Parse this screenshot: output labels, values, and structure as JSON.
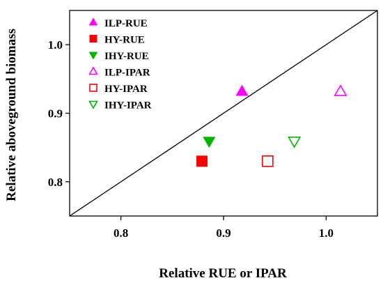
{
  "chart_data": {
    "type": "scatter",
    "title": "",
    "xlabel": "Relative RUE or IPAR",
    "ylabel": "Relative aboveground biomass",
    "xlim": [
      0.75,
      1.05
    ],
    "ylim": [
      0.75,
      1.05
    ],
    "xticks": [
      0.8,
      0.9,
      1.0
    ],
    "yticks": [
      0.8,
      0.9,
      1.0
    ],
    "xtick_labels": [
      "0.8",
      "0.9",
      "1.0"
    ],
    "ytick_labels": [
      "0.8",
      "0.9",
      "1.0"
    ],
    "reference_line": "1:1",
    "grid": false,
    "legend_position": "top-left",
    "series": [
      {
        "name": "ILP-RUE",
        "marker": "triangle-up",
        "filled": true,
        "color": "#ff00ff",
        "points": [
          {
            "x": 0.918,
            "y": 0.932
          }
        ]
      },
      {
        "name": "HY-RUE",
        "marker": "square",
        "filled": true,
        "color": "#ff0000",
        "points": [
          {
            "x": 0.879,
            "y": 0.83
          }
        ]
      },
      {
        "name": "IHY-RUE",
        "marker": "triangle-down",
        "filled": true,
        "color": "#00b400",
        "points": [
          {
            "x": 0.886,
            "y": 0.859
          }
        ]
      },
      {
        "name": "ILP-IPAR",
        "marker": "triangle-up",
        "filled": false,
        "color": "#ff00ff",
        "points": [
          {
            "x": 1.014,
            "y": 0.932
          }
        ]
      },
      {
        "name": "HY-IPAR",
        "marker": "square",
        "filled": false,
        "color": "#ff0000",
        "points": [
          {
            "x": 0.943,
            "y": 0.83
          }
        ]
      },
      {
        "name": "IHY-IPAR",
        "marker": "triangle-down",
        "filled": false,
        "color": "#00b400",
        "points": [
          {
            "x": 0.969,
            "y": 0.859
          }
        ]
      }
    ]
  }
}
